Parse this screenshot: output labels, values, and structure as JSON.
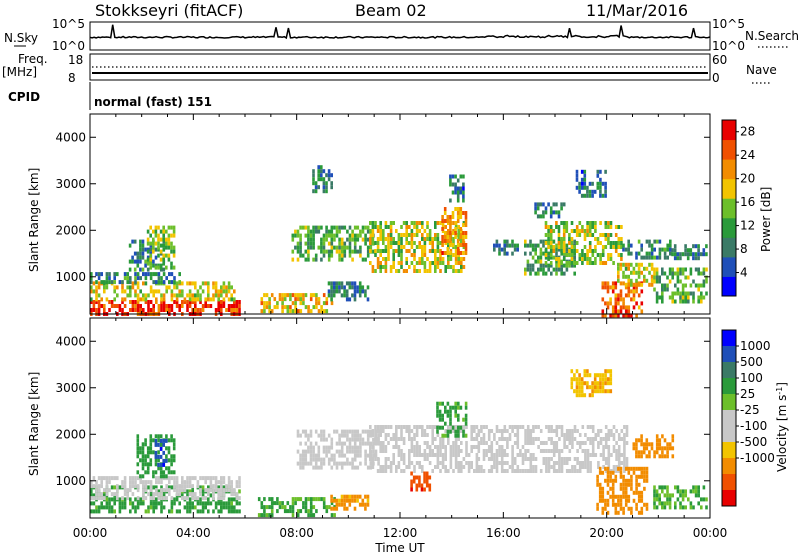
{
  "header": {
    "station": "Stokkseyri (fitACF)",
    "beam": "Beam 02",
    "date": "11/Mar/2016"
  },
  "status_panel": {
    "nsky_label": "N.Sky",
    "nsky_ticks": [
      "10^5",
      "10^0"
    ],
    "nsearch_label": "N.Search",
    "nsearch_ticks": [
      "10^5",
      "10^0"
    ],
    "freq_label": "Freq.",
    "freq_unit": "[MHz]",
    "freq_ticks": [
      "18",
      "8"
    ],
    "nave_label": "Nave",
    "nave_ticks": [
      "60",
      "0"
    ],
    "cpid_label": "CPID",
    "cpid_value": "normal (fast) 151"
  },
  "colors": {
    "power_scale": [
      "#0000ff",
      "#1f4fb8",
      "#3a7a66",
      "#2a9a3a",
      "#6cbf2a",
      "#f2c400",
      "#f28c00",
      "#f05000",
      "#e80000"
    ],
    "velocity_scale": [
      "#e80000",
      "#f05000",
      "#f28c00",
      "#f2c400",
      "#c8c8c8",
      "#c8c8c8",
      "#6cbf2a",
      "#2a9a3a",
      "#3a7a66",
      "#1f4fb8",
      "#0000ff"
    ]
  },
  "chart_data": [
    {
      "type": "heatmap",
      "parameter": "Power",
      "xlabel": "Time UT",
      "ylabel": "Slant Range [km]",
      "x_range": [
        "00:00",
        "24:00"
      ],
      "x_ticks": [
        "00:00",
        "04:00",
        "08:00",
        "12:00",
        "16:00",
        "20:00",
        "00:00"
      ],
      "ylim": [
        200,
        4500
      ],
      "y_ticks": [
        "1000",
        "2000",
        "3000",
        "4000"
      ],
      "colorbar_label": "Power [dB]",
      "colorbar_ticks": [
        "28",
        "24",
        "20",
        "16",
        "12",
        "8",
        "4"
      ],
      "colorbar_range": [
        0,
        30
      ],
      "regions": [
        {
          "t0": 0.0,
          "t1": 5.8,
          "r0": 200,
          "r1": 500,
          "value": 27
        },
        {
          "t0": 0.0,
          "t1": 5.6,
          "r0": 500,
          "r1": 900,
          "value": 18
        },
        {
          "t0": 0.0,
          "t1": 3.5,
          "r0": 900,
          "r1": 1100,
          "value": 9
        },
        {
          "t0": 1.5,
          "t1": 2.9,
          "r0": 1150,
          "r1": 1800,
          "value": 9
        },
        {
          "t0": 2.2,
          "t1": 3.3,
          "r0": 1200,
          "r1": 2100,
          "value": 15
        },
        {
          "t0": 6.6,
          "t1": 9.4,
          "r0": 300,
          "r1": 650,
          "value": 19
        },
        {
          "t0": 9.2,
          "t1": 10.8,
          "r0": 500,
          "r1": 900,
          "value": 8
        },
        {
          "t0": 7.8,
          "t1": 11.0,
          "r0": 1400,
          "r1": 2100,
          "value": 13
        },
        {
          "t0": 10.8,
          "t1": 14.5,
          "r0": 1150,
          "r1": 2200,
          "value": 17
        },
        {
          "t0": 13.6,
          "t1": 14.6,
          "r0": 1500,
          "r1": 2500,
          "value": 22
        },
        {
          "t0": 13.9,
          "t1": 14.5,
          "r0": 2600,
          "r1": 3200,
          "value": 8
        },
        {
          "t0": 8.6,
          "t1": 9.4,
          "r0": 2800,
          "r1": 3400,
          "value": 8
        },
        {
          "t0": 15.6,
          "t1": 16.6,
          "r0": 1500,
          "r1": 1800,
          "value": 8
        },
        {
          "t0": 16.8,
          "t1": 18.8,
          "r0": 1100,
          "r1": 1800,
          "value": 12
        },
        {
          "t0": 17.6,
          "t1": 20.6,
          "r0": 1300,
          "r1": 2200,
          "value": 16
        },
        {
          "t0": 18.8,
          "t1": 20.0,
          "r0": 2700,
          "r1": 3300,
          "value": 8
        },
        {
          "t0": 17.2,
          "t1": 18.4,
          "r0": 2300,
          "r1": 2600,
          "value": 8
        },
        {
          "t0": 20.6,
          "t1": 22.5,
          "r0": 1400,
          "r1": 1800,
          "value": 10
        },
        {
          "t0": 22.5,
          "t1": 23.9,
          "r0": 1400,
          "r1": 1700,
          "value": 9
        },
        {
          "t0": 19.8,
          "t1": 21.4,
          "r0": 200,
          "r1": 900,
          "value": 24
        },
        {
          "t0": 20.4,
          "t1": 21.8,
          "r0": 800,
          "r1": 1300,
          "value": 18
        },
        {
          "t0": 21.8,
          "t1": 23.9,
          "r0": 500,
          "r1": 1200,
          "value": 13
        }
      ]
    },
    {
      "type": "heatmap",
      "parameter": "Velocity",
      "xlabel": "Time UT",
      "ylabel": "Slant Range [km]",
      "x_range": [
        "00:00",
        "24:00"
      ],
      "x_ticks": [
        "00:00",
        "04:00",
        "08:00",
        "12:00",
        "16:00",
        "20:00",
        "00:00"
      ],
      "ylim": [
        200,
        4500
      ],
      "y_ticks": [
        "1000",
        "2000",
        "3000",
        "4000"
      ],
      "colorbar_label": "Velocity [m s^-1]",
      "colorbar_ticks": [
        "1000",
        "500",
        "100",
        "25",
        "-25",
        "-100",
        "-500",
        "-1000"
      ],
      "regions": [
        {
          "t0": 0.0,
          "t1": 5.8,
          "r0": 300,
          "r1": 900,
          "value": 150
        },
        {
          "t0": 0.0,
          "t1": 5.8,
          "r0": 600,
          "r1": 1100,
          "value": 0
        },
        {
          "t0": 1.8,
          "t1": 3.3,
          "r0": 1100,
          "r1": 2000,
          "value": 300
        },
        {
          "t0": 2.5,
          "t1": 3.0,
          "r0": 1300,
          "r1": 1900,
          "value": 900
        },
        {
          "t0": 6.5,
          "t1": 9.5,
          "r0": 300,
          "r1": 650,
          "value": 120
        },
        {
          "t0": 9.3,
          "t1": 10.8,
          "r0": 400,
          "r1": 700,
          "value": -150
        },
        {
          "t0": 8.0,
          "t1": 11.2,
          "r0": 1300,
          "r1": 2100,
          "value": 0
        },
        {
          "t0": 10.8,
          "t1": 15.0,
          "r0": 1200,
          "r1": 2200,
          "value": 0
        },
        {
          "t0": 12.4,
          "t1": 13.2,
          "r0": 800,
          "r1": 1200,
          "value": -800
        },
        {
          "t0": 13.4,
          "t1": 14.6,
          "r0": 2000,
          "r1": 2700,
          "value": 150
        },
        {
          "t0": 15.0,
          "t1": 20.8,
          "r0": 1200,
          "r1": 2200,
          "value": 0
        },
        {
          "t0": 18.6,
          "t1": 20.2,
          "r0": 2800,
          "r1": 3400,
          "value": -80
        },
        {
          "t0": 21.0,
          "t1": 22.6,
          "r0": 1500,
          "r1": 2000,
          "value": -200
        },
        {
          "t0": 19.6,
          "t1": 21.6,
          "r0": 300,
          "r1": 1300,
          "value": -300
        },
        {
          "t0": 21.8,
          "t1": 23.9,
          "r0": 400,
          "r1": 900,
          "value": 100
        }
      ]
    }
  ]
}
